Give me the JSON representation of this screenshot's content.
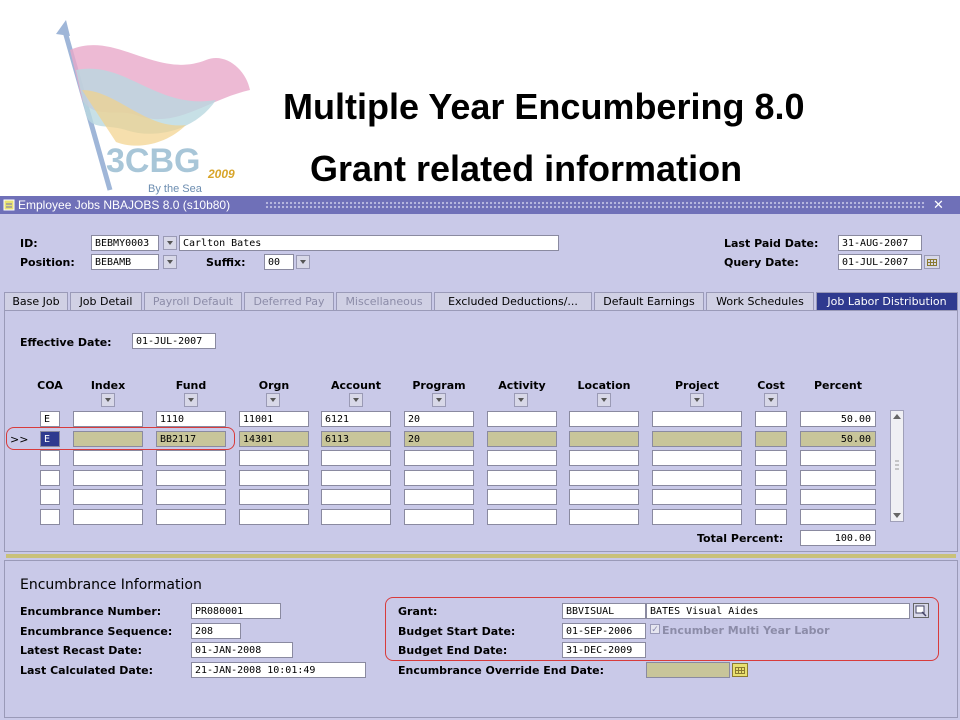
{
  "slide": {
    "title_line1": "Multiple Year Encumbering 8.0",
    "title_line2": "Grant related information",
    "logo_text": "3CBG",
    "logo_subtext": "By the Sea",
    "logo_year": "2009"
  },
  "window": {
    "title": "Employee Jobs  NBAJOBS  8.0  (s10b80)",
    "close_glyph": "✕"
  },
  "header": {
    "id_label": "ID:",
    "id_value": "BEBMY0003",
    "name_value": "Carlton Bates",
    "position_label": "Position:",
    "position_value": "BEBAMB",
    "suffix_label": "Suffix:",
    "suffix_value": "00",
    "last_paid_label": "Last Paid Date:",
    "last_paid_value": "31-AUG-2007",
    "query_label": "Query Date:",
    "query_value": "01-JUL-2007"
  },
  "tabs": [
    {
      "label": "Base Job",
      "state": "normal"
    },
    {
      "label": "Job Detail",
      "state": "normal"
    },
    {
      "label": "Payroll Default",
      "state": "disabled"
    },
    {
      "label": "Deferred Pay",
      "state": "disabled"
    },
    {
      "label": "Miscellaneous",
      "state": "disabled"
    },
    {
      "label": "Excluded Deductions/...",
      "state": "normal"
    },
    {
      "label": "Default Earnings",
      "state": "normal"
    },
    {
      "label": "Work Schedules",
      "state": "normal"
    },
    {
      "label": "Job Labor Distribution",
      "state": "active"
    }
  ],
  "labor": {
    "effective_label": "Effective Date:",
    "effective_value": "01-JUL-2007",
    "columns": [
      "COA",
      "Index",
      "Fund",
      "Orgn",
      "Account",
      "Program",
      "Activity",
      "Location",
      "Project",
      "Cost",
      "Percent"
    ],
    "current_marker": ">>",
    "rows": [
      {
        "coa": "E",
        "index": "",
        "fund": "1110",
        "orgn": "11001",
        "account": "6121",
        "program": "20",
        "activity": "",
        "location": "",
        "project": "",
        "cost": "",
        "percent": "50.00"
      },
      {
        "coa": "E",
        "index": "",
        "fund": "BB2117",
        "orgn": "14301",
        "account": "6113",
        "program": "20",
        "activity": "",
        "location": "",
        "project": "",
        "cost": "",
        "percent": "50.00"
      },
      {
        "coa": "",
        "index": "",
        "fund": "",
        "orgn": "",
        "account": "",
        "program": "",
        "activity": "",
        "location": "",
        "project": "",
        "cost": "",
        "percent": ""
      },
      {
        "coa": "",
        "index": "",
        "fund": "",
        "orgn": "",
        "account": "",
        "program": "",
        "activity": "",
        "location": "",
        "project": "",
        "cost": "",
        "percent": ""
      },
      {
        "coa": "",
        "index": "",
        "fund": "",
        "orgn": "",
        "account": "",
        "program": "",
        "activity": "",
        "location": "",
        "project": "",
        "cost": "",
        "percent": ""
      },
      {
        "coa": "",
        "index": "",
        "fund": "",
        "orgn": "",
        "account": "",
        "program": "",
        "activity": "",
        "location": "",
        "project": "",
        "cost": "",
        "percent": ""
      }
    ],
    "total_label": "Total Percent:",
    "total_value": "100.00"
  },
  "encumbrance": {
    "section_title": "Encumbrance Information",
    "number_label": "Encumbrance Number:",
    "number_value": "PR080001",
    "sequence_label": "Encumbrance Sequence:",
    "sequence_value": "208",
    "recast_label": "Latest Recast Date:",
    "recast_value": "01-JAN-2008",
    "calculated_label": "Last Calculated Date:",
    "calculated_value": "21-JAN-2008 10:01:49",
    "grant_label": "Grant:",
    "grant_code": "BBVISUAL",
    "grant_name": "BATES Visual Aides",
    "budget_start_label": "Budget Start Date:",
    "budget_start_value": "01-SEP-2006",
    "budget_end_label": "Budget End Date:",
    "budget_end_value": "31-DEC-2009",
    "multi_year_label": "Encumber Multi Year Labor",
    "override_label": "Encumbrance Override End Date:",
    "override_value": ""
  }
}
